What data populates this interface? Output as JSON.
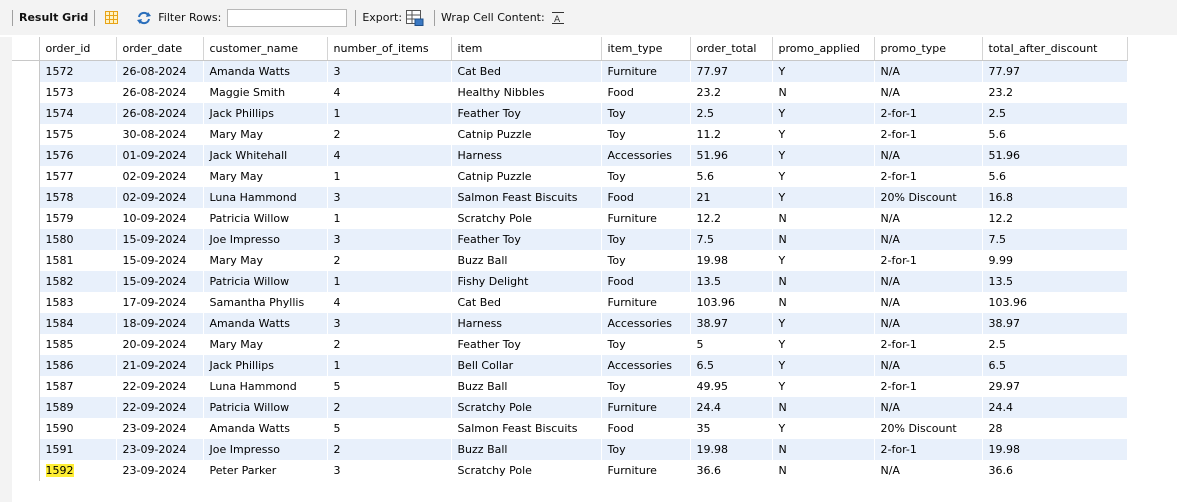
{
  "toolbar": {
    "result_grid": "Result Grid",
    "filter_rows": "Filter Rows:",
    "filter_value": "",
    "export": "Export:",
    "wrap": "Wrap Cell Content:"
  },
  "columns": [
    "order_id",
    "order_date",
    "customer_name",
    "number_of_items",
    "item",
    "item_type",
    "order_total",
    "promo_applied",
    "promo_type",
    "total_after_discount"
  ],
  "rows": [
    [
      "1572",
      "26-08-2024",
      "Amanda Watts",
      "3",
      "Cat Bed",
      "Furniture",
      "77.97",
      "Y",
      "N/A",
      "77.97"
    ],
    [
      "1573",
      "26-08-2024",
      "Maggie Smith",
      "4",
      "Healthy Nibbles",
      "Food",
      "23.2",
      "N",
      "N/A",
      "23.2"
    ],
    [
      "1574",
      "26-08-2024",
      "Jack Phillips",
      "1",
      "Feather Toy",
      "Toy",
      "2.5",
      "Y",
      "2-for-1",
      "2.5"
    ],
    [
      "1575",
      "30-08-2024",
      "Mary May",
      "2",
      "Catnip Puzzle",
      "Toy",
      "11.2",
      "Y",
      "2-for-1",
      "5.6"
    ],
    [
      "1576",
      "01-09-2024",
      "Jack Whitehall",
      "4",
      "Harness",
      "Accessories",
      "51.96",
      "Y",
      "N/A",
      "51.96"
    ],
    [
      "1577",
      "02-09-2024",
      "Mary May",
      "1",
      "Catnip Puzzle",
      "Toy",
      "5.6",
      "Y",
      "2-for-1",
      "5.6"
    ],
    [
      "1578",
      "02-09-2024",
      "Luna Hammond",
      "3",
      "Salmon Feast Biscuits",
      "Food",
      "21",
      "Y",
      "20% Discount",
      "16.8"
    ],
    [
      "1579",
      "10-09-2024",
      "Patricia Willow",
      "1",
      "Scratchy Pole",
      "Furniture",
      "12.2",
      "N",
      "N/A",
      "12.2"
    ],
    [
      "1580",
      "15-09-2024",
      "Joe Impresso",
      "3",
      "Feather Toy",
      "Toy",
      "7.5",
      "N",
      "N/A",
      "7.5"
    ],
    [
      "1581",
      "15-09-2024",
      "Mary May",
      "2",
      "Buzz Ball",
      "Toy",
      "19.98",
      "Y",
      "2-for-1",
      "9.99"
    ],
    [
      "1582",
      "15-09-2024",
      "Patricia Willow",
      "1",
      "Fishy Delight",
      "Food",
      "13.5",
      "N",
      "N/A",
      "13.5"
    ],
    [
      "1583",
      "17-09-2024",
      "Samantha Phyllis",
      "4",
      "Cat Bed",
      "Furniture",
      "103.96",
      "N",
      "N/A",
      "103.96"
    ],
    [
      "1584",
      "18-09-2024",
      "Amanda Watts",
      "3",
      "Harness",
      "Accessories",
      "38.97",
      "Y",
      "N/A",
      "38.97"
    ],
    [
      "1585",
      "20-09-2024",
      "Mary May",
      "2",
      "Feather Toy",
      "Toy",
      "5",
      "Y",
      "2-for-1",
      "2.5"
    ],
    [
      "1586",
      "21-09-2024",
      "Jack Phillips",
      "1",
      "Bell Collar",
      "Accessories",
      "6.5",
      "Y",
      "N/A",
      "6.5"
    ],
    [
      "1587",
      "22-09-2024",
      "Luna Hammond",
      "5",
      "Buzz Ball",
      "Toy",
      "49.95",
      "Y",
      "2-for-1",
      "29.97"
    ],
    [
      "1589",
      "22-09-2024",
      "Patricia Willow",
      "2",
      "Scratchy Pole",
      "Furniture",
      "24.4",
      "N",
      "N/A",
      "24.4"
    ],
    [
      "1590",
      "23-09-2024",
      "Amanda Watts",
      "5",
      "Salmon Feast Biscuits",
      "Food",
      "35",
      "Y",
      "20% Discount",
      "28"
    ],
    [
      "1591",
      "23-09-2024",
      "Joe Impresso",
      "2",
      "Buzz Ball",
      "Toy",
      "19.98",
      "N",
      "2-for-1",
      "19.98"
    ],
    [
      "1592",
      "23-09-2024",
      "Peter Parker",
      "3",
      "Scratchy Pole",
      "Furniture",
      "36.6",
      "N",
      "N/A",
      "36.6"
    ]
  ],
  "highlighted_cell": {
    "row": 19,
    "col": 0,
    "color": "#ffee33"
  },
  "colors": {
    "stripe": "#e8f0fb",
    "toolbar_bg": "#f3f3f3",
    "grid_icon": "#e8a317",
    "refresh_icon": "#2a6ebb"
  }
}
